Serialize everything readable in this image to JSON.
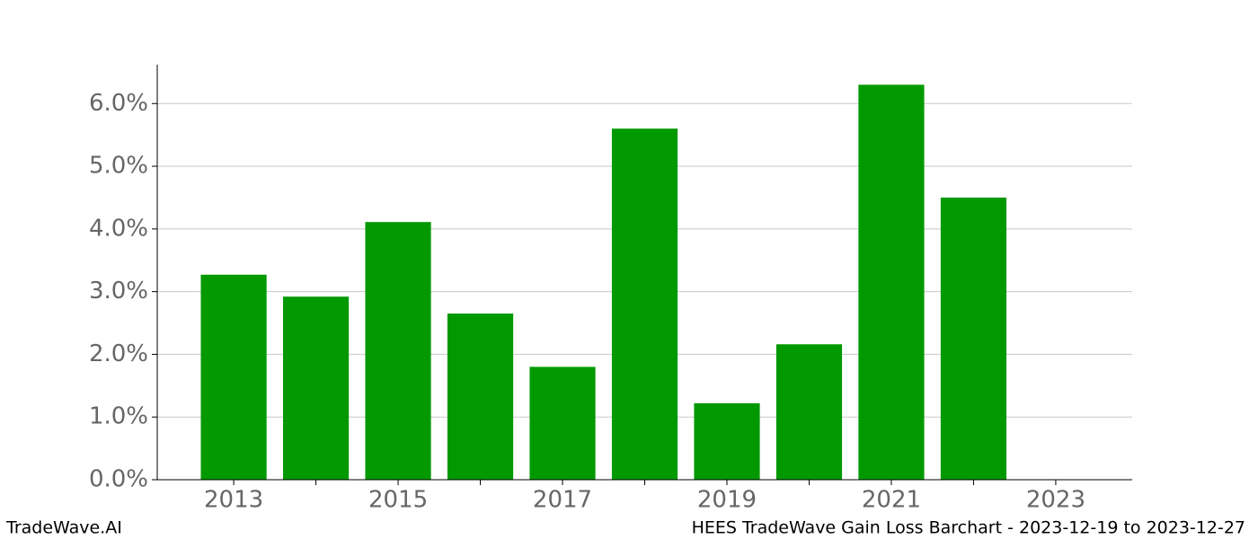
{
  "chart_data": {
    "type": "bar",
    "title": "HEES TradeWave Gain Loss Barchart - 2023-12-19 to 2023-12-27",
    "brand": "TradeWave.AI",
    "x": [
      2013,
      2014,
      2015,
      2016,
      2017,
      2018,
      2019,
      2020,
      2021,
      2022
    ],
    "values": [
      3.27,
      2.92,
      4.11,
      2.65,
      1.8,
      5.6,
      1.22,
      2.16,
      6.3,
      4.5
    ],
    "color": "#009900",
    "xlim": [
      2012.07,
      2023.93
    ],
    "xticks": [
      2013,
      2015,
      2017,
      2019,
      2021,
      2023
    ],
    "xminor_ticks": [
      2014,
      2016,
      2018,
      2020,
      2022
    ],
    "ylim": [
      0,
      6.62
    ],
    "yticks": [
      {
        "value": 0,
        "label": "0.0%"
      },
      {
        "value": 1,
        "label": "1.0%"
      },
      {
        "value": 2,
        "label": "2.0%"
      },
      {
        "value": 3,
        "label": "3.0%"
      },
      {
        "value": 4,
        "label": "4.0%"
      },
      {
        "value": 5,
        "label": "5.0%"
      },
      {
        "value": 6,
        "label": "6.0%"
      }
    ],
    "grid": true
  }
}
